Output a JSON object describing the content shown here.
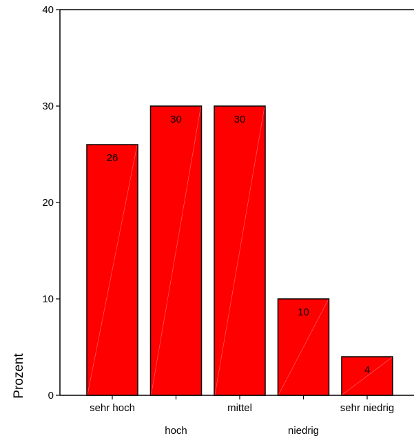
{
  "chart_data": {
    "type": "bar",
    "title": "",
    "xlabel": "",
    "ylabel": "Prozent",
    "categories": [
      "sehr hoch",
      "hoch",
      "mittel",
      "niedrig",
      "sehr niedrig"
    ],
    "values": [
      26,
      30,
      30,
      10,
      4
    ],
    "data_labels": [
      "26",
      "30",
      "30",
      "10",
      "4"
    ],
    "ylim": [
      0,
      40
    ],
    "yticks": [
      0,
      10,
      20,
      30,
      40
    ],
    "ytick_labels": [
      "0",
      "10",
      "20",
      "30",
      "40"
    ],
    "grid": false,
    "legend": "none",
    "bar_color": "#ff0000",
    "bar_edge_color": "#000000"
  }
}
